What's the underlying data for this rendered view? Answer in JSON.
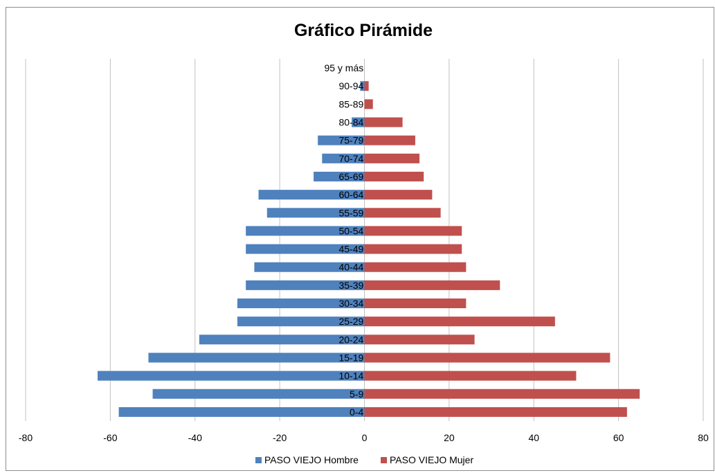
{
  "chart_data": {
    "type": "bar",
    "orientation": "horizontal",
    "title": "Gráfico Pirámide",
    "categories": [
      "0-4",
      "5-9",
      "10-14",
      "15-19",
      "20-24",
      "25-29",
      "30-34",
      "35-39",
      "40-44",
      "45-49",
      "50-54",
      "55-59",
      "60-64",
      "65-69",
      "70-74",
      "75-79",
      "80-84",
      "85-89",
      "90-94",
      "95 y más"
    ],
    "series": [
      {
        "name": "PASO VIEJO Hombre",
        "color": "#4F81BD",
        "values": [
          -58,
          -50,
          -63,
          -51,
          -39,
          -30,
          -30,
          -28,
          -26,
          -28,
          -28,
          -23,
          -25,
          -12,
          -10,
          -11,
          -3,
          0,
          -1,
          0
        ]
      },
      {
        "name": "PASO VIEJO Mujer",
        "color": "#C0504D",
        "values": [
          62,
          65,
          50,
          58,
          26,
          45,
          24,
          32,
          24,
          23,
          23,
          18,
          16,
          14,
          13,
          12,
          9,
          2,
          1,
          0
        ]
      }
    ],
    "xlim": [
      -80,
      80
    ],
    "xticks": [
      -80,
      -60,
      -40,
      -20,
      0,
      20,
      40,
      60,
      80
    ],
    "xtick_labels": [
      "-80",
      "-60",
      "-40",
      "-20",
      "0",
      "20",
      "40",
      "60",
      "80"
    ],
    "grid": true,
    "legend_position": "bottom"
  }
}
